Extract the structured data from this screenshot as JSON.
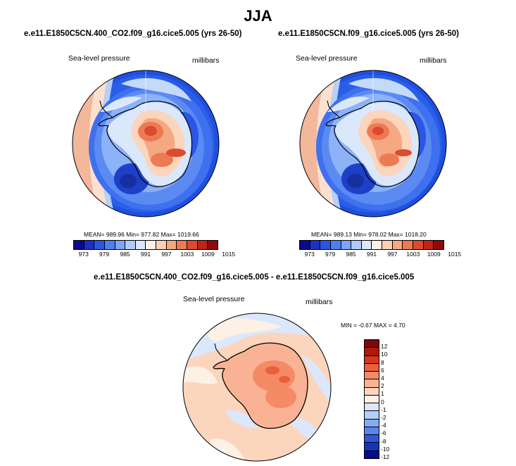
{
  "title": "JJA",
  "panels": [
    {
      "case": "e.e11.E1850C5CN.400_CO2.f09_g16.cice5.005 (yrs 26-50)",
      "variable": "Sea-level pressure",
      "units": "millibars",
      "stats": "MEAN= 989.96   Min= 977.82  Max= 1019.66"
    },
    {
      "case": "e.e11.E1850C5CN.f09_g16.cice5.005 (yrs 26-50)",
      "variable": "Sea-level pressure",
      "units": "millibars",
      "stats": "MEAN= 989.13  Min= 978.02  Max= 1018.20"
    }
  ],
  "diff": {
    "title": "e.e11.E1850C5CN.400_CO2.f09_g16.cice5.005 - e.e11.E1850C5CN.f09_g16.cice5.005",
    "variable": "Sea-level pressure",
    "units": "millibars",
    "stats": "MIN =  -0.67 MAX =   4.70"
  },
  "abs_legend": {
    "colors": [
      "#0a0a8c",
      "#1e2fc8",
      "#2a55e6",
      "#4f7ef0",
      "#7fa6f6",
      "#b0cafa",
      "#dbe8fc",
      "#fdf1e6",
      "#fbd0b4",
      "#f5a882",
      "#ec7a55",
      "#db4b2e",
      "#c02418",
      "#8e0a0a"
    ],
    "labels": [
      "973",
      "979",
      "985",
      "991",
      "997",
      "1003",
      "1009",
      "1015"
    ]
  },
  "diff_legend": {
    "colors": [
      "#7b0a0a",
      "#b0170f",
      "#d6361f",
      "#ea5f3e",
      "#f58a66",
      "#f9b394",
      "#fcd5bd",
      "#fdf1e6",
      "#dbe8fc",
      "#b3cdf8",
      "#86abf2",
      "#5a85ea",
      "#2e57da",
      "#1633b8",
      "#0a0a8c"
    ],
    "labels": [
      "12",
      "10",
      "8",
      "6",
      "4",
      "2",
      "1",
      "0",
      "-1",
      "-2",
      "-4",
      "-6",
      "-8",
      "-10",
      "-12"
    ]
  },
  "icons": [
    "antarctica-map",
    "polar-stereographic-globe"
  ]
}
